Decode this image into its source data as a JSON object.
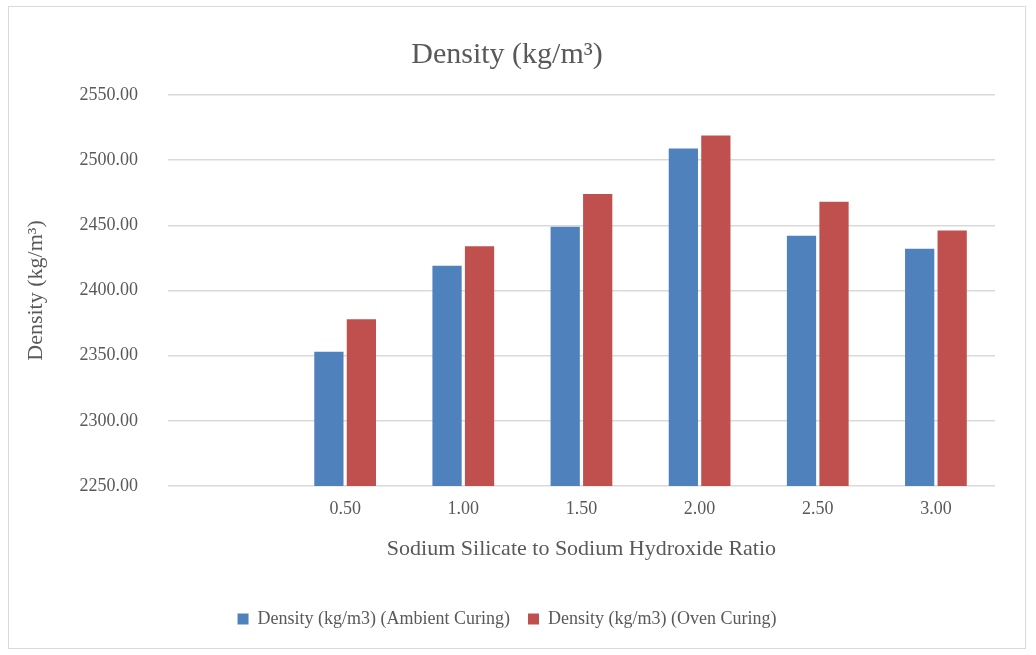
{
  "chart_data": {
    "type": "bar",
    "title": "Density (kg/m³)",
    "xlabel": "Sodium Silicate to Sodium Hydroxide Ratio",
    "ylabel": "Density (kg/m³)",
    "categories": [
      null,
      "0.50",
      "1.00",
      "1.50",
      "2.00",
      "2.50",
      "3.00"
    ],
    "series": [
      {
        "name": "Density (kg/m3) (Ambient Curing)",
        "color": "#4f81bd",
        "values": [
          null,
          2353,
          2419,
          2449,
          2509,
          2442,
          2432
        ]
      },
      {
        "name": "Density (kg/m3) (Oven Curing)",
        "color": "#c0504d",
        "values": [
          null,
          2378,
          2434,
          2474,
          2519,
          2468,
          2446
        ]
      }
    ],
    "ylim": [
      2250,
      2550
    ],
    "yticks": [
      {
        "value": 2250,
        "label": "2250.00"
      },
      {
        "value": 2300,
        "label": "2300.00"
      },
      {
        "value": 2350,
        "label": "2350.00"
      },
      {
        "value": 2400,
        "label": "2400.00"
      },
      {
        "value": 2450,
        "label": "2450.00"
      },
      {
        "value": 2500,
        "label": "2500.00"
      },
      {
        "value": 2550,
        "label": "2550.00"
      }
    ],
    "grid": "y",
    "legend": "bottom"
  }
}
